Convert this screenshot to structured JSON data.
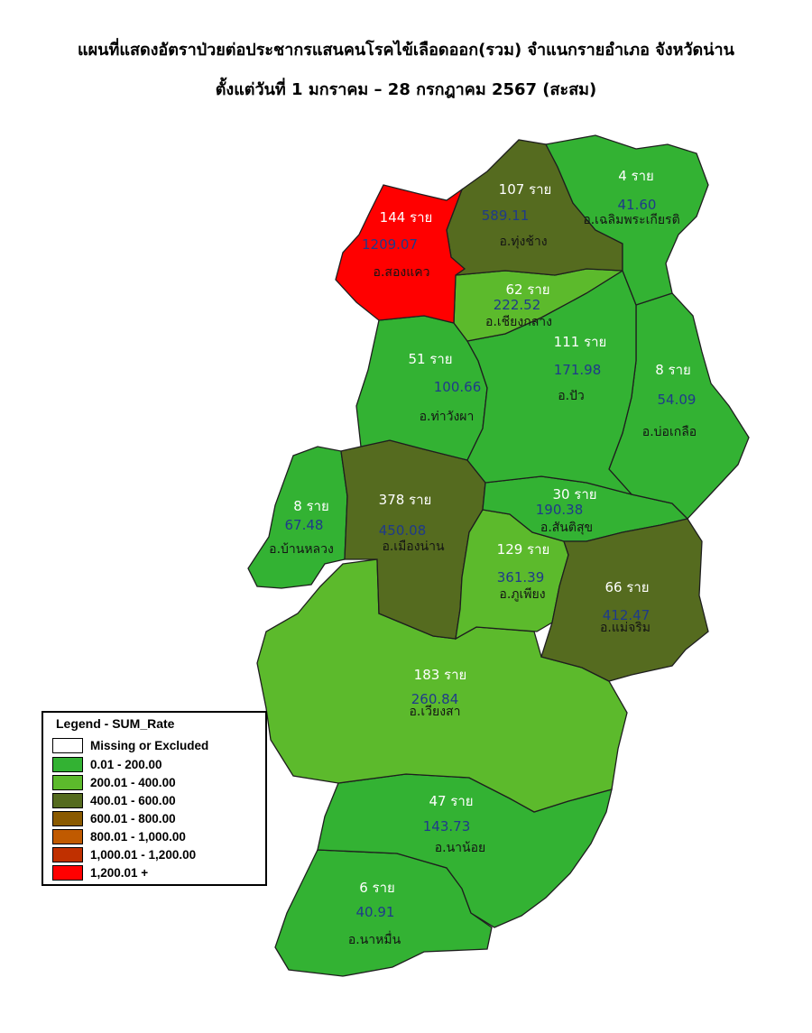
{
  "title_line1": "แผนที่แสดงอัตราป่วยต่อประชากรแสนคนโรคไข้เลือดออก(รวม) จำแนกรายอำเภอ จังหวัดน่าน",
  "title_line2": "ตั้งแต่วันที่  1 มกราคม – 28 กรกฎาคม 2567 (สะสม)",
  "colors": {
    "missing": "#ffffff",
    "c0_200": "#33b233",
    "c200_400": "#5cba2c",
    "c400_600": "#556b1f",
    "c600_800": "#8a5a00",
    "c800_1000": "#c05a00",
    "c1000_1200": "#c03000",
    "c1200_plus": "#ff0000"
  },
  "legend": {
    "title": "Legend - SUM_Rate",
    "items": [
      {
        "label": "Missing or Excluded",
        "color": "#ffffff"
      },
      {
        "label": "0.01 - 200.00",
        "color": "#33b233"
      },
      {
        "label": "200.01 - 400.00",
        "color": "#5cba2c"
      },
      {
        "label": "400.01 - 600.00",
        "color": "#556b1f"
      },
      {
        "label": "600.01 - 800.00",
        "color": "#8a5a00"
      },
      {
        "label": "800.01 - 1,000.00",
        "color": "#c05a00"
      },
      {
        "label": "1,000.01 - 1,200.00",
        "color": "#c03000"
      },
      {
        "label": "1,200.01 +",
        "color": "#ff0000"
      }
    ]
  },
  "districts": [
    {
      "name": "อ.สองแคว",
      "cases": "144 ราย",
      "rate": "1209.07"
    },
    {
      "name": "อ.ทุ่งช้าง",
      "cases": "107 ราย",
      "rate": "589.11"
    },
    {
      "name": "อ.เฉลิมพระเกียรติ",
      "cases": "4 ราย",
      "rate": "41.60"
    },
    {
      "name": "อ.เชียงกลาง",
      "cases": "62 ราย",
      "rate": "222.52"
    },
    {
      "name": "อ.ปัว",
      "cases": "111 ราย",
      "rate": "171.98"
    },
    {
      "name": "อ.ท่าวังผา",
      "cases": "51 ราย",
      "rate": "100.66"
    },
    {
      "name": "อ.บ่อเกลือ",
      "cases": "8 ราย",
      "rate": "54.09"
    },
    {
      "name": "อ.บ้านหลวง",
      "cases": "8 ราย",
      "rate": "67.48"
    },
    {
      "name": "อ.เมืองน่าน",
      "cases": "378 ราย",
      "rate": "450.08"
    },
    {
      "name": "อ.สันติสุข",
      "cases": "30 ราย",
      "rate": "190.38"
    },
    {
      "name": "อ.ภูเพียง",
      "cases": "129 ราย",
      "rate": "361.39"
    },
    {
      "name": "อ.แม่จริม",
      "cases": "66 ราย",
      "rate": "412.47"
    },
    {
      "name": "อ.เวียงสา",
      "cases": "183 ราย",
      "rate": "260.84"
    },
    {
      "name": "อ.นาน้อย",
      "cases": "47 ราย",
      "rate": "143.73"
    },
    {
      "name": "อ.นาหมื่น",
      "cases": "6 ราย",
      "rate": "40.91"
    }
  ]
}
